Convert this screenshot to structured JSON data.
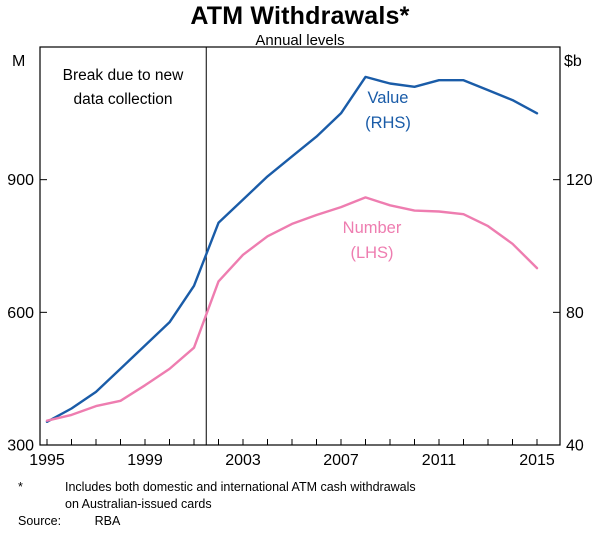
{
  "chart_data": {
    "type": "line",
    "title": "ATM Withdrawals*",
    "subtitle": "Annual levels",
    "x": [
      1995,
      1996,
      1997,
      1998,
      1999,
      2000,
      2001,
      2002,
      2003,
      2004,
      2005,
      2006,
      2007,
      2008,
      2009,
      2010,
      2011,
      2012,
      2013,
      2014,
      2015
    ],
    "series": [
      {
        "name": "Value",
        "axis": "RHS",
        "unit": "$b",
        "color": "#1a5ca8",
        "label_lines": [
          "Value",
          "(RHS)"
        ],
        "values": [
          47,
          51,
          56,
          63,
          70,
          77,
          88,
          107,
          114,
          121,
          127,
          133,
          140,
          151,
          149,
          148,
          150,
          150,
          147,
          144,
          140
        ]
      },
      {
        "name": "Number",
        "axis": "LHS",
        "unit": "M",
        "color": "#ee7db0",
        "label_lines": [
          "Number",
          "(LHS)"
        ],
        "values": [
          355,
          368,
          388,
          400,
          435,
          472,
          520,
          670,
          730,
          772,
          800,
          820,
          838,
          860,
          842,
          830,
          828,
          822,
          795,
          755,
          700
        ]
      }
    ],
    "left_axis": {
      "unit": "M",
      "min": 300,
      "max": 1200,
      "ticks": [
        300,
        600,
        900
      ]
    },
    "right_axis": {
      "unit": "$b",
      "min": 40,
      "max": 160,
      "ticks": [
        40,
        80,
        120
      ]
    },
    "x_axis": {
      "min": 1995,
      "max": 2015,
      "labeled_ticks": [
        1995,
        1999,
        2003,
        2007,
        2011,
        2015
      ],
      "minor_ticks_every_year": true
    },
    "break_line": {
      "year": 2001.5,
      "annotation_lines": [
        "Break due to new",
        "data collection"
      ]
    },
    "grid": false,
    "legend_position": "inline-labels"
  },
  "footnote": {
    "marker": "*",
    "line1": "Includes both domestic and international ATM cash withdrawals",
    "line2": "on Australian-issued cards"
  },
  "source": {
    "label": "Source:",
    "value": "RBA"
  }
}
